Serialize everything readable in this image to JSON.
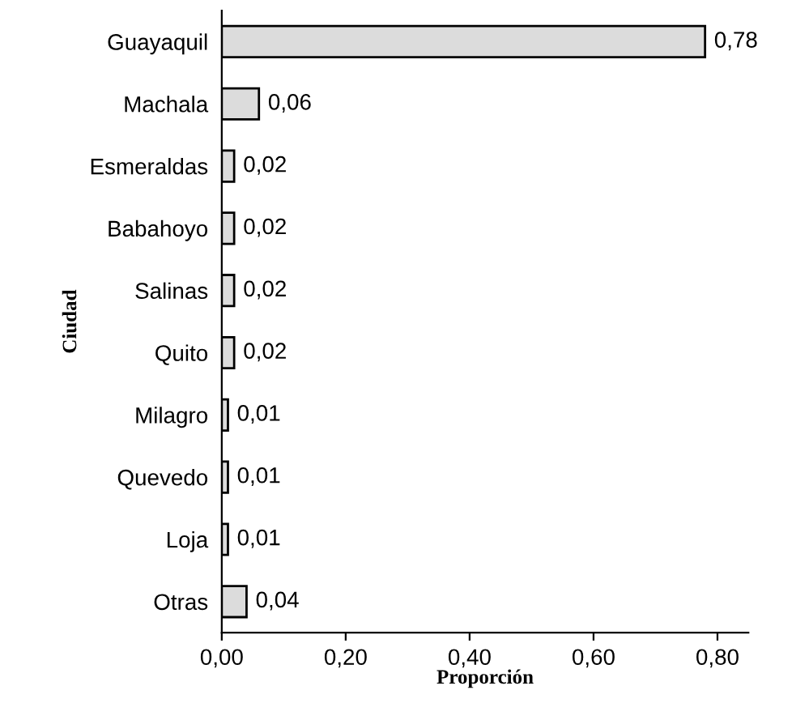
{
  "chart_data": {
    "type": "bar",
    "orientation": "horizontal",
    "xlabel": "Proporción",
    "ylabel": "Ciudad",
    "categories": [
      "Guayaquil",
      "Machala",
      "Esmeraldas",
      "Babahoyo",
      "Salinas",
      "Quito",
      "Milagro",
      "Quevedo",
      "Loja",
      "Otras"
    ],
    "values": [
      0.78,
      0.06,
      0.02,
      0.02,
      0.02,
      0.02,
      0.01,
      0.01,
      0.01,
      0.04
    ],
    "value_labels": [
      "0,78",
      "0,06",
      "0,02",
      "0,02",
      "0,02",
      "0,02",
      "0,01",
      "0,01",
      "0,01",
      "0,04"
    ],
    "color": "#dcdcdc",
    "xlim": [
      0,
      0.85
    ],
    "xticks": [
      {
        "value": 0,
        "label": "0,00"
      },
      {
        "value": 0.2,
        "label": "0,20"
      },
      {
        "value": 0.4,
        "label": "0,40"
      },
      {
        "value": 0.6,
        "label": "0,60"
      },
      {
        "value": 0.8,
        "label": "0,80"
      }
    ],
    "grid": false
  }
}
